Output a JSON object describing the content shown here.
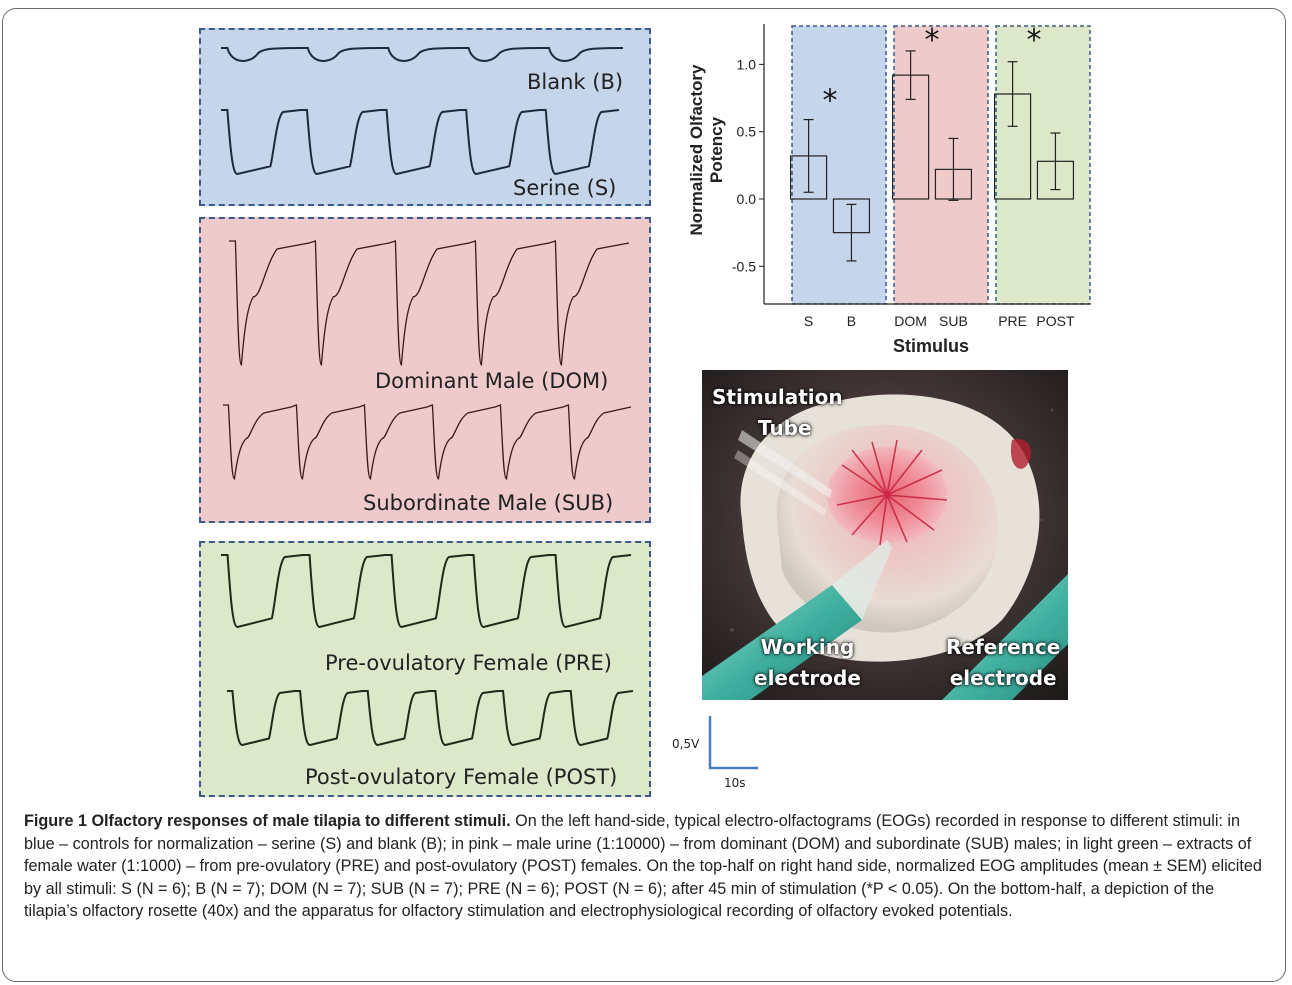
{
  "panels": {
    "blue": {
      "color": "#c5d5ea",
      "traces": [
        "Blank (B)",
        "Serine (S)"
      ]
    },
    "pink": {
      "color": "#efcaca",
      "traces": [
        "Dominant Male (DOM)",
        "Subordinate Male (SUB)"
      ]
    },
    "green": {
      "color": "#dde8cb",
      "traces": [
        "Pre-ovulatory Female (PRE)",
        "Post-ovulatory Female (POST)"
      ]
    }
  },
  "chart_data": {
    "type": "bar",
    "categories": [
      "S",
      "B",
      "DOM",
      "SUB",
      "PRE",
      "POST"
    ],
    "values": [
      0.32,
      -0.25,
      0.92,
      0.22,
      0.78,
      0.28
    ],
    "errors": [
      0.27,
      0.21,
      0.18,
      0.23,
      0.24,
      0.21
    ],
    "ylabel_line1": "Normalized Olfactory",
    "ylabel_line2": "Potency",
    "xlabel": "Stimulus",
    "ylim": [
      -0.78,
      1.3
    ],
    "yticks": [
      -0.5,
      0.0,
      0.5,
      1.0
    ],
    "ytick_labels": [
      "-0.5",
      "0.0",
      "0.5",
      "1.0"
    ],
    "significance": [
      {
        "pair": [
          "S",
          "B"
        ],
        "label": "*",
        "y": 0.85
      },
      {
        "pair": [
          "DOM",
          "SUB"
        ],
        "label": "*",
        "y": 1.3
      },
      {
        "pair": [
          "PRE",
          "POST"
        ],
        "label": "*",
        "y": 1.3
      }
    ],
    "group_colors": [
      "#c5d5ea",
      "#efcaca",
      "#dde8cb"
    ]
  },
  "photo": {
    "label_stimulation": [
      "Stimulation",
      "Tube"
    ],
    "label_working": [
      "Working",
      "electrode"
    ],
    "label_reference": [
      "Reference",
      "electrode"
    ]
  },
  "scale_bar": {
    "voltage": "0,5V",
    "time": "10s"
  },
  "caption": {
    "title": "Figure 1 Olfactory responses of male tilapia to different stimuli.",
    "body": " On the left hand-side, typical electro-olfactograms (EOGs) recorded in response to different stimuli: in blue – controls for normalization – serine (S) and blank (B); in pink – male urine (1:10000) – from dominant (DOM) and subordinate (SUB) males; in light green – extracts of female water (1:1000) – from pre-ovulatory (PRE) and post-ovulatory (POST) females. On the top-half on right hand side, normalized EOG amplitudes (mean ± SEM) elicited by all stimuli: S (N = 6); B (N = 7); DOM (N = 7); SUB (N = 7); PRE (N = 6); POST (N = 6); after 45 min of stimulation (*P < 0.05). On the bottom-half, a depiction of the tilapia’s olfactory rosette (40x) and the apparatus for olfactory stimulation and electrophysiological recording of olfactory evoked potentials."
  }
}
